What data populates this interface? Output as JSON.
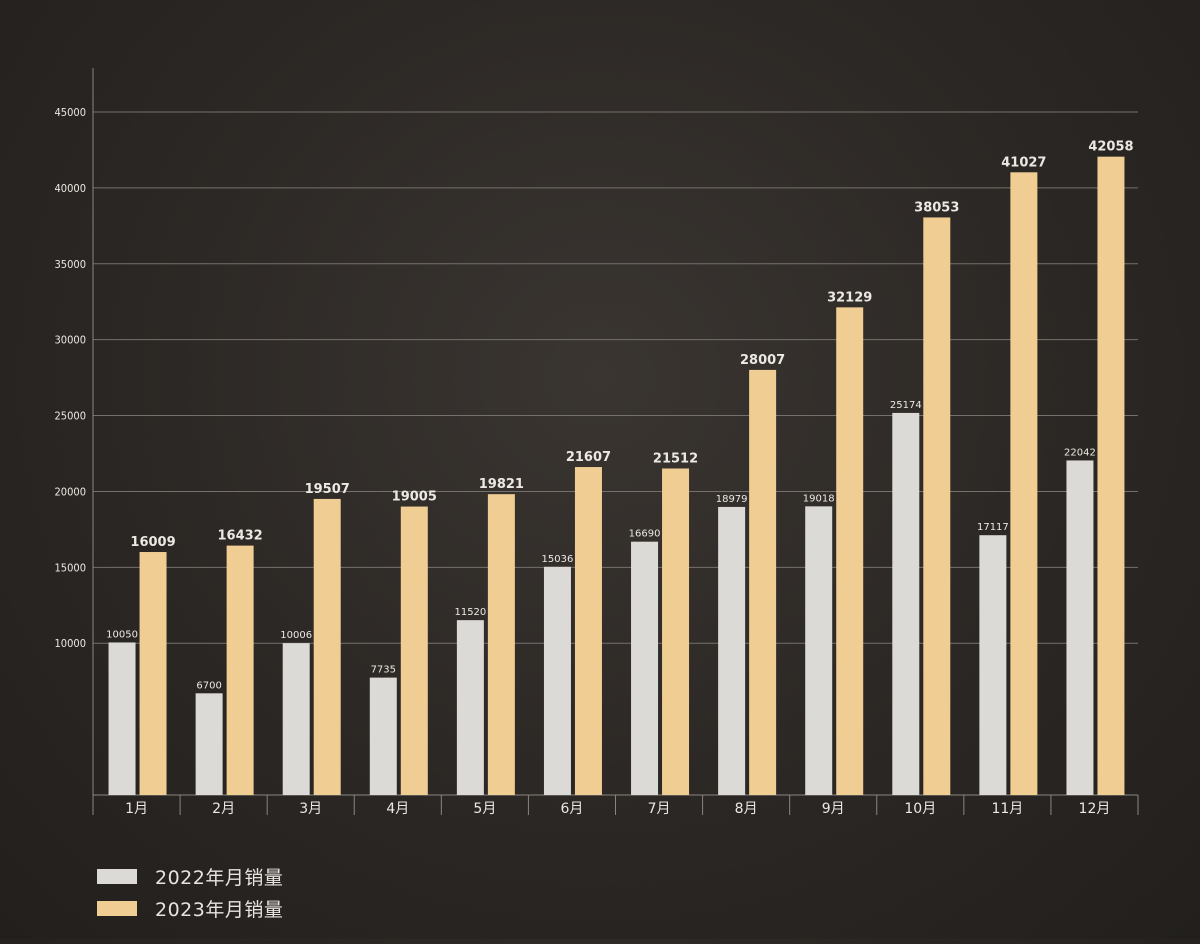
{
  "colors": {
    "series_2022": "#dcdad7",
    "series_2023": "#f0cd92",
    "grid": "#75706b",
    "axis": "#8a857f",
    "text": "#ece8e3"
  },
  "chart_data": {
    "type": "bar",
    "title": "",
    "xlabel": "",
    "ylabel": "",
    "ylim": [
      0,
      45000
    ],
    "yticks": [
      10000,
      15000,
      20000,
      25000,
      30000,
      35000,
      40000,
      45000
    ],
    "categories": [
      "1月",
      "2月",
      "3月",
      "4月",
      "5月",
      "6月",
      "7月",
      "8月",
      "9月",
      "10月",
      "11月",
      "12月"
    ],
    "grid": true,
    "legend_position": "bottom-left",
    "series": [
      {
        "name": "2022年月销量",
        "values": [
          10050,
          6700,
          10006,
          7735,
          11520,
          15036,
          16690,
          18979,
          19018,
          25174,
          17117,
          22042
        ]
      },
      {
        "name": "2023年月销量",
        "values": [
          16009,
          16432,
          19507,
          19005,
          19821,
          21607,
          21512,
          28007,
          32129,
          38053,
          41027,
          42058
        ]
      }
    ]
  }
}
